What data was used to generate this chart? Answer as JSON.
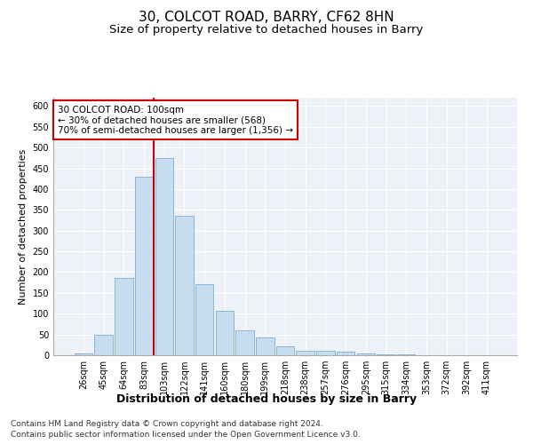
{
  "title": "30, COLCOT ROAD, BARRY, CF62 8HN",
  "subtitle": "Size of property relative to detached houses in Barry",
  "xlabel": "Distribution of detached houses by size in Barry",
  "ylabel": "Number of detached properties",
  "categories": [
    "26sqm",
    "45sqm",
    "64sqm",
    "83sqm",
    "103sqm",
    "122sqm",
    "141sqm",
    "160sqm",
    "180sqm",
    "199sqm",
    "218sqm",
    "238sqm",
    "257sqm",
    "276sqm",
    "295sqm",
    "315sqm",
    "334sqm",
    "353sqm",
    "372sqm",
    "392sqm",
    "411sqm"
  ],
  "values": [
    5,
    50,
    185,
    430,
    475,
    335,
    172,
    107,
    60,
    43,
    22,
    10,
    10,
    8,
    5,
    3,
    2,
    1,
    1,
    1,
    1
  ],
  "bar_color": "#c8dcf0",
  "bar_edge_color": "#7aaed6",
  "vline_x_index": 4,
  "vline_color": "#cc0000",
  "annotation_line1": "30 COLCOT ROAD: 100sqm",
  "annotation_line2": "← 30% of detached houses are smaller (568)",
  "annotation_line3": "70% of semi-detached houses are larger (1,356) →",
  "annotation_box_color": "white",
  "annotation_box_edge_color": "#cc0000",
  "ylim": [
    0,
    620
  ],
  "yticks": [
    0,
    50,
    100,
    150,
    200,
    250,
    300,
    350,
    400,
    450,
    500,
    550,
    600
  ],
  "footnote1": "Contains HM Land Registry data © Crown copyright and database right 2024.",
  "footnote2": "Contains public sector information licensed under the Open Government Licence v3.0.",
  "background_color": "#eef2f8",
  "grid_color": "white",
  "title_fontsize": 11,
  "subtitle_fontsize": 9.5,
  "xlabel_fontsize": 9,
  "ylabel_fontsize": 8,
  "tick_fontsize": 7,
  "annotation_fontsize": 7.5,
  "footnote_fontsize": 6.5
}
